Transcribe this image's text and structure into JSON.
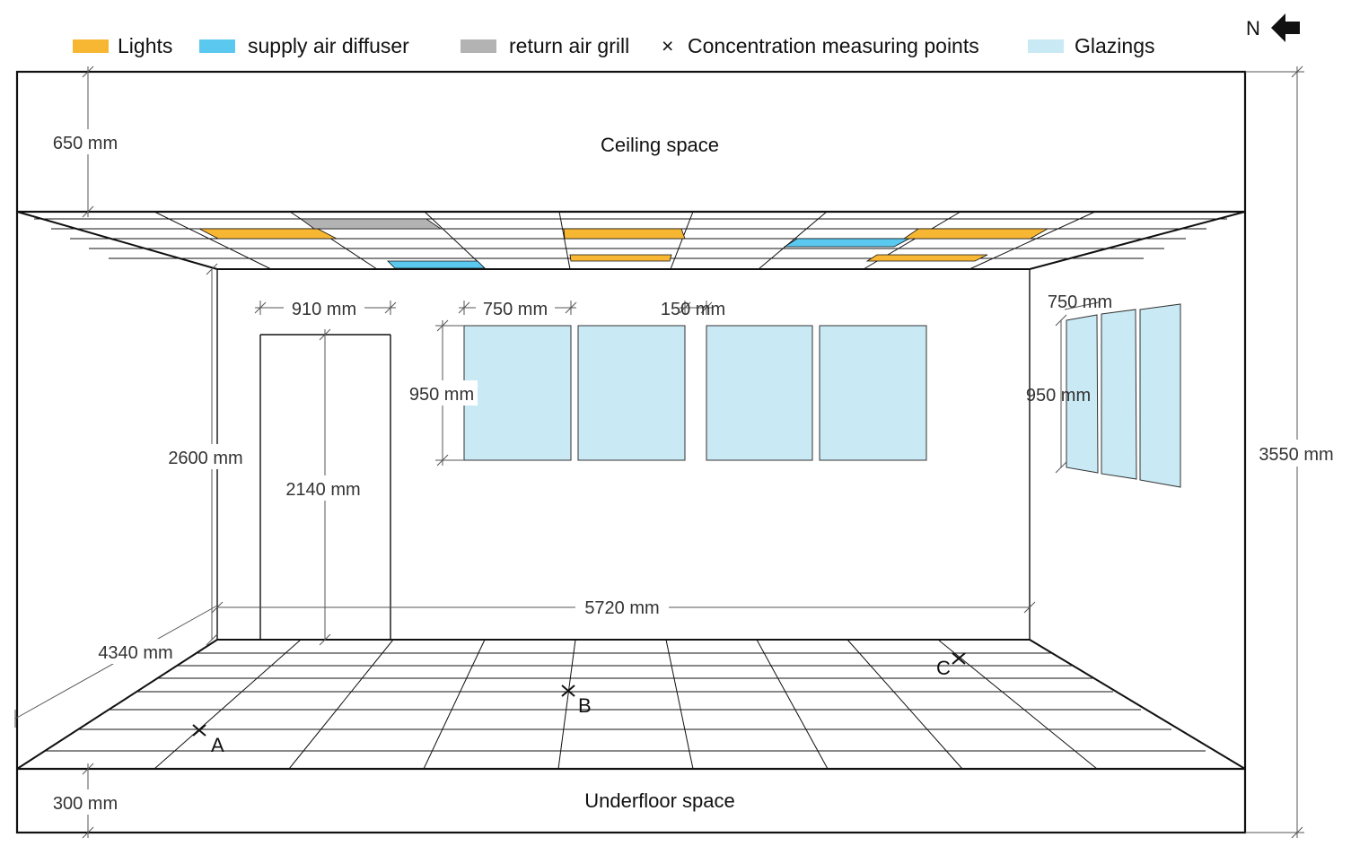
{
  "legend": {
    "lights": "Lights",
    "supply": "supply air diffuser",
    "return": "return air grill",
    "measure_symbol": "×",
    "measure": "Concentration measuring points",
    "glazings": "Glazings"
  },
  "north": {
    "label": "N",
    "icon": "arrow-left-icon"
  },
  "spaces": {
    "ceiling": "Ceiling space",
    "underfloor": "Underfloor space"
  },
  "dimensions": {
    "ceiling_height": "650 mm",
    "underfloor_height": "300 mm",
    "total_height": "3550 mm",
    "room_height": "2600 mm",
    "depth": "4340 mm",
    "width": "5720 mm",
    "door_width": "910 mm",
    "door_height": "2140 mm",
    "window_width": "750 mm",
    "window_gap": "150 mm",
    "window_height": "950 mm",
    "side_window_width": "750 mm",
    "side_window_height": "950 mm"
  },
  "points": [
    "A",
    "B",
    "C"
  ],
  "colors": {
    "lights": "#F7B733",
    "supply": "#5BC8F0",
    "return": "#B3B3B3",
    "glazing": "#C9E9F4",
    "line": "#111111",
    "dim_line": "#555555"
  }
}
